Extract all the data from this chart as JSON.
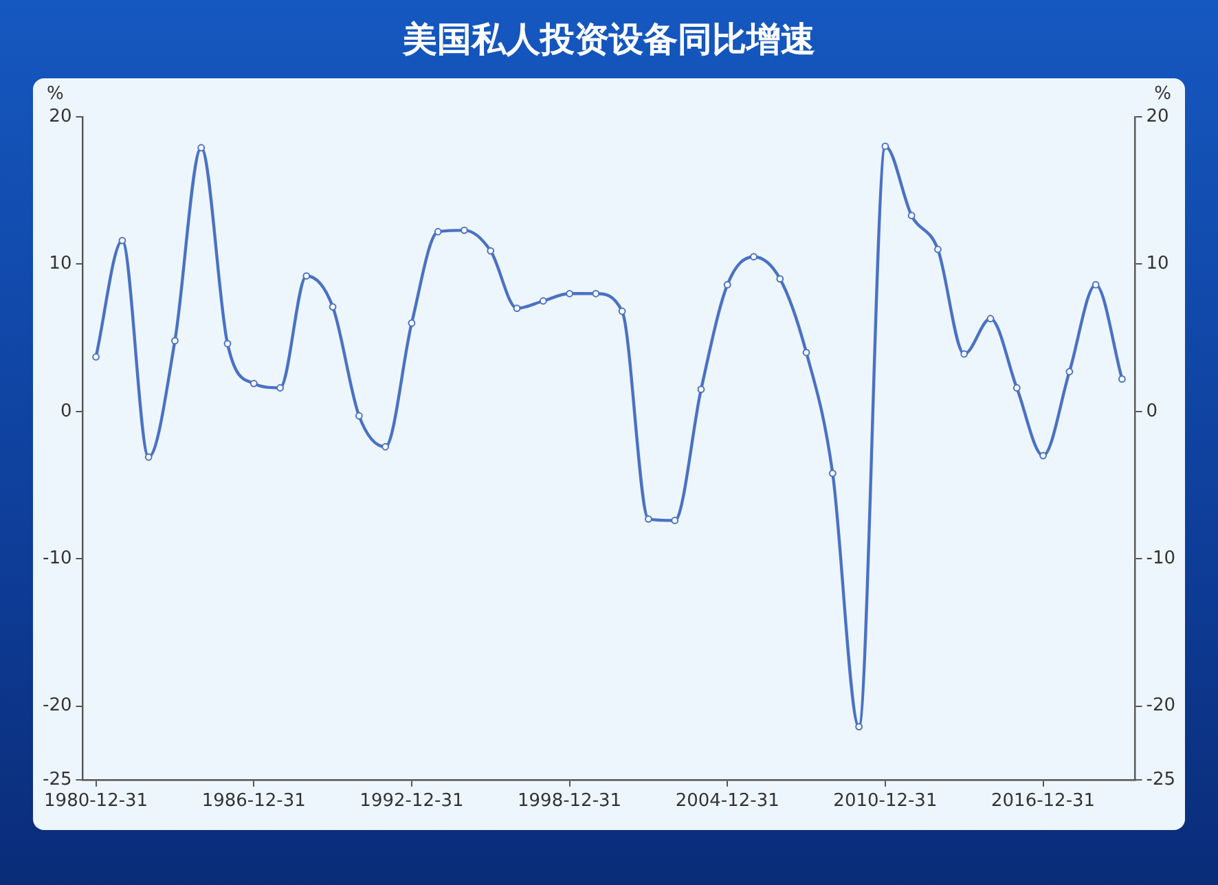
{
  "chart_data": {
    "type": "line",
    "title": "美国私人投资设备同比增速",
    "ylabel": "%",
    "y2label": "%",
    "categories": [
      "1980-12-31",
      null,
      null,
      null,
      null,
      null,
      "1986-12-31",
      null,
      null,
      null,
      null,
      null,
      "1992-12-31",
      null,
      null,
      null,
      null,
      null,
      "1998-12-31",
      null,
      null,
      null,
      null,
      null,
      "2004-12-31",
      null,
      null,
      null,
      null,
      null,
      "2010-12-31",
      null,
      null,
      null,
      null,
      null,
      "2016-12-31",
      null,
      null,
      null
    ],
    "series": [
      {
        "color": "#4a72c4",
        "values": [
          3.7,
          11.6,
          -3.1,
          4.8,
          17.9,
          4.6,
          1.9,
          1.6,
          9.2,
          7.1,
          -0.3,
          -2.4,
          6.0,
          12.2,
          12.3,
          10.9,
          7.0,
          7.5,
          8.0,
          8.0,
          6.8,
          -7.3,
          -7.4,
          1.5,
          8.6,
          10.5,
          9.0,
          4.0,
          -4.2,
          -21.4,
          18.0,
          13.3,
          11.0,
          3.9,
          6.3,
          1.6,
          -3.0,
          2.7,
          8.6,
          2.2
        ]
      }
    ],
    "ylim": [
      -25,
      20
    ],
    "yticks": [
      -25,
      -20,
      -10,
      0,
      10,
      20
    ],
    "y2lim": [
      -25,
      20
    ],
    "y2ticks": [
      -25,
      -20,
      -10,
      0,
      10,
      20
    ],
    "grid": false,
    "legend": false,
    "marker": "circle",
    "line_style": "solid"
  }
}
